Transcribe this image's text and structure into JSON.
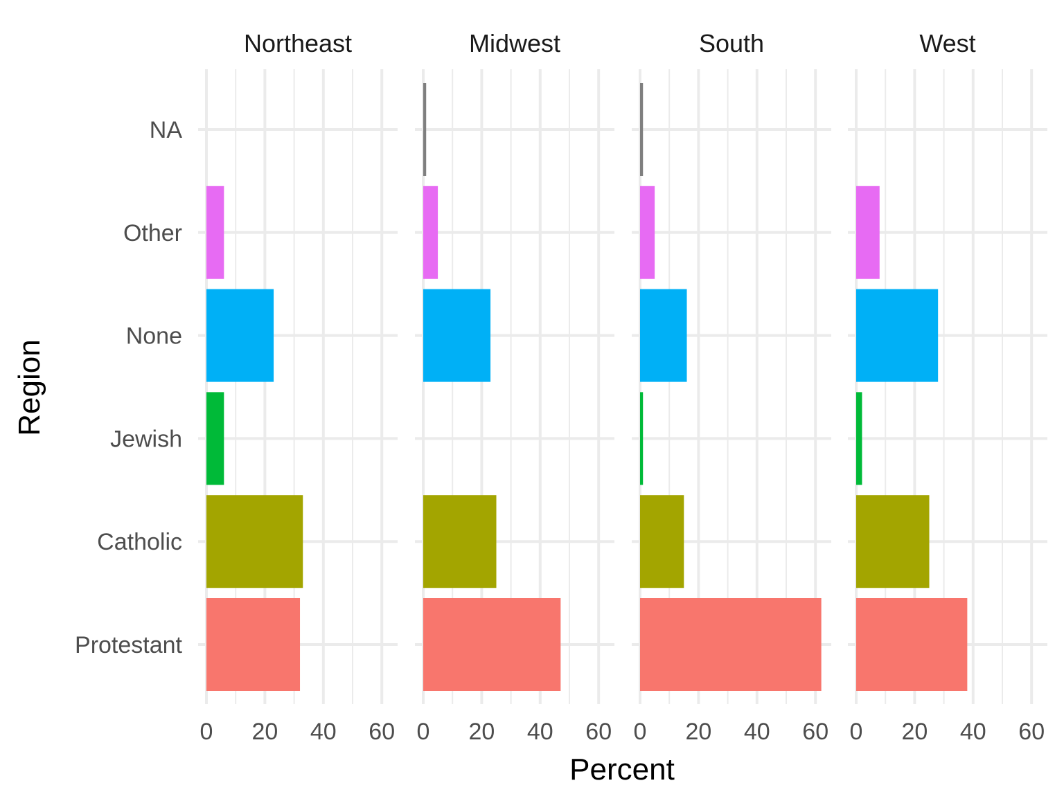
{
  "chart_data": {
    "type": "bar",
    "orientation": "horizontal",
    "facet_by": "region",
    "xlabel": "Percent",
    "ylabel": "Region",
    "xlim": [
      0,
      65
    ],
    "xticks": [
      0,
      20,
      40,
      60
    ],
    "grid": true,
    "legend": "none",
    "categories": [
      "Protestant",
      "Catholic",
      "Jewish",
      "None",
      "Other",
      "NA"
    ],
    "category_colors": {
      "Protestant": "#F8766D",
      "Catholic": "#A3A500",
      "Jewish": "#00BA38",
      "None": "#00B0F6",
      "Other": "#E76BF3",
      "NA": "#7F7F7F"
    },
    "panels": [
      {
        "name": "Northeast",
        "values": {
          "Protestant": 32,
          "Catholic": 33,
          "Jewish": 6,
          "None": 23,
          "Other": 6,
          "NA": 0
        }
      },
      {
        "name": "Midwest",
        "values": {
          "Protestant": 47,
          "Catholic": 25,
          "Jewish": 0,
          "None": 23,
          "Other": 5,
          "NA": 1
        }
      },
      {
        "name": "South",
        "values": {
          "Protestant": 62,
          "Catholic": 15,
          "Jewish": 1,
          "None": 16,
          "Other": 5,
          "NA": 1
        }
      },
      {
        "name": "West",
        "values": {
          "Protestant": 38,
          "Catholic": 25,
          "Jewish": 2,
          "None": 28,
          "Other": 8,
          "NA": 0
        }
      }
    ]
  }
}
